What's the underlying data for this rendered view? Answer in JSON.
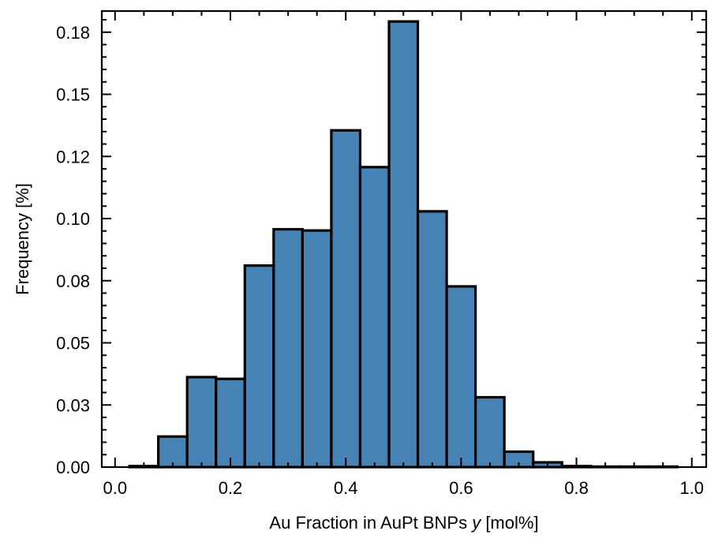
{
  "chart_data": {
    "type": "bar",
    "bin_width": 0.05,
    "bins": [
      {
        "x0": 0.025,
        "x1": 0.075,
        "value": 0.0004
      },
      {
        "x0": 0.075,
        "x1": 0.125,
        "value": 0.0123
      },
      {
        "x0": 0.125,
        "x1": 0.175,
        "value": 0.0362
      },
      {
        "x0": 0.175,
        "x1": 0.225,
        "value": 0.0355
      },
      {
        "x0": 0.225,
        "x1": 0.275,
        "value": 0.0811
      },
      {
        "x0": 0.275,
        "x1": 0.325,
        "value": 0.0957
      },
      {
        "x0": 0.325,
        "x1": 0.375,
        "value": 0.0952
      },
      {
        "x0": 0.375,
        "x1": 0.425,
        "value": 0.1355
      },
      {
        "x0": 0.425,
        "x1": 0.475,
        "value": 0.1207
      },
      {
        "x0": 0.475,
        "x1": 0.525,
        "value": 0.1793
      },
      {
        "x0": 0.525,
        "x1": 0.575,
        "value": 0.1029
      },
      {
        "x0": 0.575,
        "x1": 0.625,
        "value": 0.0727
      },
      {
        "x0": 0.625,
        "x1": 0.675,
        "value": 0.0281
      },
      {
        "x0": 0.675,
        "x1": 0.725,
        "value": 0.0062
      },
      {
        "x0": 0.725,
        "x1": 0.775,
        "value": 0.0019
      },
      {
        "x0": 0.775,
        "x1": 0.825,
        "value": 0.0004
      },
      {
        "x0": 0.825,
        "x1": 0.875,
        "value": 0.0002
      },
      {
        "x0": 0.875,
        "x1": 0.925,
        "value": 0.0002
      },
      {
        "x0": 0.925,
        "x1": 0.975,
        "value": 0.0002
      }
    ],
    "xlabel_prefix": "Au Fraction in AuPt BNPs ",
    "xlabel_var": "y",
    "xlabel_suffix": " [mol%]",
    "ylabel": "Frequency [%]",
    "xlim": [
      -0.023,
      1.025
    ],
    "ylim": [
      0,
      0.1835
    ],
    "xticks": [
      {
        "value": 0.0,
        "label": "0.0"
      },
      {
        "value": 0.2,
        "label": "0.2"
      },
      {
        "value": 0.4,
        "label": "0.4"
      },
      {
        "value": 0.6,
        "label": "0.6"
      },
      {
        "value": 0.8,
        "label": "0.8"
      },
      {
        "value": 1.0,
        "label": "1.0"
      }
    ],
    "yticks": [
      {
        "value": 0.0,
        "label": "0.00"
      },
      {
        "value": 0.025,
        "label": "0.03"
      },
      {
        "value": 0.05,
        "label": "0.05"
      },
      {
        "value": 0.075,
        "label": "0.08"
      },
      {
        "value": 0.1,
        "label": "0.10"
      },
      {
        "value": 0.125,
        "label": "0.12"
      },
      {
        "value": 0.15,
        "label": "0.15"
      },
      {
        "value": 0.175,
        "label": "0.18"
      }
    ],
    "x_minor_step": 0.05,
    "y_minor_step": 0.005,
    "bar_color": "#4682b4",
    "edge_color": "#000000",
    "grid": false
  }
}
